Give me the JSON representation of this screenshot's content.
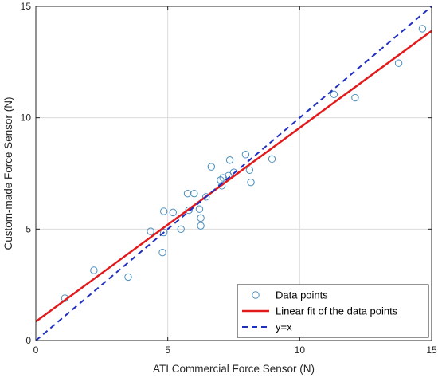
{
  "chart_data": {
    "type": "scatter",
    "xlabel": "ATI Commercial Force Sensor (N)",
    "ylabel": "Custom-made Force Sensor (N)",
    "xlim": [
      0,
      15
    ],
    "ylim": [
      0,
      15
    ],
    "xticks": [
      0,
      5,
      10,
      15
    ],
    "yticks": [
      0,
      5,
      10,
      15
    ],
    "grid": true,
    "legend_position": "bottom-right",
    "series": [
      {
        "name": "Data points",
        "kind": "scatter",
        "marker": "circle",
        "color": "#4a8fc1",
        "points": [
          [
            1.1,
            1.9
          ],
          [
            2.2,
            3.15
          ],
          [
            3.5,
            2.85
          ],
          [
            4.35,
            4.9
          ],
          [
            4.8,
            3.95
          ],
          [
            4.85,
            4.85
          ],
          [
            4.85,
            5.8
          ],
          [
            5.2,
            5.75
          ],
          [
            5.5,
            5.0
          ],
          [
            5.75,
            6.6
          ],
          [
            5.8,
            5.85
          ],
          [
            6.0,
            6.6
          ],
          [
            6.2,
            5.9
          ],
          [
            6.25,
            5.5
          ],
          [
            6.25,
            5.15
          ],
          [
            6.45,
            6.45
          ],
          [
            6.65,
            7.8
          ],
          [
            7.0,
            7.2
          ],
          [
            7.05,
            6.95
          ],
          [
            7.1,
            7.3
          ],
          [
            7.3,
            7.4
          ],
          [
            7.35,
            8.1
          ],
          [
            7.5,
            7.55
          ],
          [
            7.95,
            8.35
          ],
          [
            8.1,
            7.65
          ],
          [
            8.15,
            7.1
          ],
          [
            8.95,
            8.15
          ],
          [
            11.3,
            11.05
          ],
          [
            12.1,
            10.9
          ],
          [
            13.75,
            12.45
          ],
          [
            14.65,
            14.0
          ]
        ]
      },
      {
        "name": "Linear fit of the data points",
        "kind": "line",
        "line_style": "solid",
        "color": "#e31a1c",
        "x": [
          0,
          15
        ],
        "y": [
          0.85,
          13.9
        ]
      },
      {
        "name": "y=x",
        "kind": "line",
        "line_style": "dashed",
        "color": "#1f2fbf",
        "x": [
          0,
          15
        ],
        "y": [
          0,
          15
        ]
      }
    ]
  }
}
